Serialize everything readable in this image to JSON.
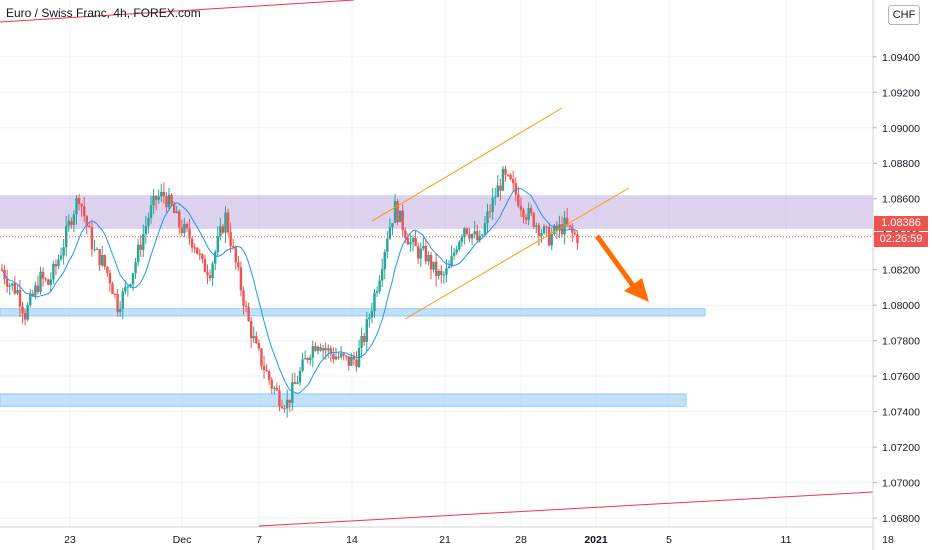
{
  "header": {
    "title": "Euro / Swiss Franc, 4h, FOREX.com",
    "currency_button": "CHF"
  },
  "price_axis": {
    "current_price": "1.08386",
    "countdown": "02:26:59"
  },
  "colors": {
    "up": "#26a69a",
    "down": "#ef5350",
    "candle": "#2a2e39",
    "ma": "#2196f3",
    "resistance_zone": "#b39ddb",
    "support_zone": "#90caf9",
    "channel": "#ff9800",
    "trendline": "#f23645",
    "arrow": "#ff6d00"
  },
  "chart_data": {
    "type": "candlestick",
    "interval": "4h",
    "x_ticks": [
      "23",
      "Dec",
      "7",
      "14",
      "21",
      "28",
      "2021",
      "5",
      "11",
      "18"
    ],
    "y_ticks": [
      1.068,
      1.07,
      1.072,
      1.074,
      1.076,
      1.078,
      1.08,
      1.082,
      1.084,
      1.086,
      1.088,
      1.09,
      1.092,
      1.094
    ],
    "ylim": [
      1.0675,
      1.0972
    ],
    "grid": true,
    "last_price": 1.08386,
    "zones": [
      {
        "name": "resistance",
        "y_from": 1.0843,
        "y_to": 1.0862
      },
      {
        "name": "support-1",
        "y_from": 1.0794,
        "y_to": 1.0798
      },
      {
        "name": "support-2",
        "y_from": 1.0743,
        "y_to": 1.075
      }
    ],
    "channel": {
      "upper": [
        [
          1.0843,
          1.09
        ]
      ],
      "lower": [
        [
          1.0795,
          1.0858
        ]
      ]
    },
    "ohlc_path": [
      1.082,
      1.0812,
      1.0808,
      1.0795,
      1.0805,
      1.0815,
      1.0812,
      1.0822,
      1.0835,
      1.085,
      1.0862,
      1.0845,
      1.083,
      1.0825,
      1.0815,
      1.08,
      1.0808,
      1.082,
      1.0835,
      1.085,
      1.086,
      1.0862,
      1.0855,
      1.0845,
      1.084,
      1.0835,
      1.0822,
      1.082,
      1.0835,
      1.085,
      1.083,
      1.081,
      1.079,
      1.0775,
      1.0765,
      1.0755,
      1.0748,
      1.0745,
      1.0755,
      1.0765,
      1.0775,
      1.078,
      1.0775,
      1.0772,
      1.077,
      1.0768,
      1.077,
      1.0782,
      1.08,
      1.0818,
      1.084,
      1.0855,
      1.0845,
      1.0835,
      1.083,
      1.0828,
      1.082,
      1.0815,
      1.082,
      1.0835,
      1.0845,
      1.084,
      1.0835,
      1.085,
      1.0862,
      1.0872,
      1.0868,
      1.086,
      1.0852,
      1.0848,
      1.0842,
      1.0838,
      1.0842,
      1.0845,
      1.084,
      1.0838
    ]
  }
}
